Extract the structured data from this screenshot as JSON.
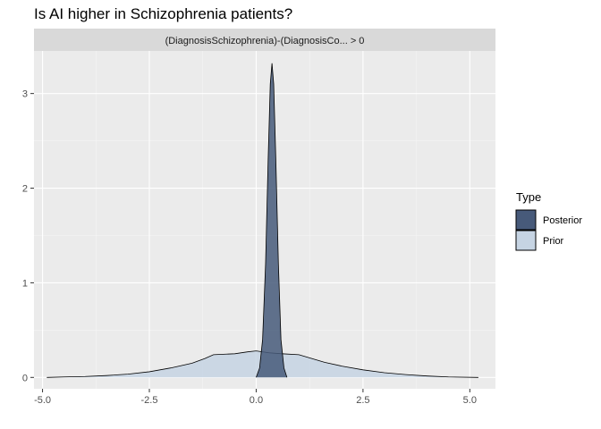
{
  "chart_data": {
    "type": "area",
    "title": "Is AI higher in Schizophrenia patients?",
    "facet_label": "(DiagnosisSchizophrenia)-(DiagnosisCo... > 0",
    "xlabel": "",
    "ylabel": "",
    "xlim": [
      -5.2,
      5.6
    ],
    "ylim": [
      -0.12,
      3.45
    ],
    "x_ticks": [
      -5.0,
      -2.5,
      0.0,
      2.5,
      5.0
    ],
    "x_tick_labels": [
      "-5.0",
      "-2.5",
      "0.0",
      "2.5",
      "5.0"
    ],
    "y_ticks": [
      0,
      1,
      2,
      3
    ],
    "y_tick_labels": [
      "0",
      "1",
      "2",
      "3"
    ],
    "grid": true,
    "legend": {
      "title": "Type",
      "position": "right",
      "entries": [
        "Posterior",
        "Prior"
      ]
    },
    "series": [
      {
        "name": "Prior",
        "color": "#c6d4e3",
        "points": [
          [
            -4.9,
            0.0
          ],
          [
            -4.5,
            0.005
          ],
          [
            -4.0,
            0.01
          ],
          [
            -3.5,
            0.02
          ],
          [
            -3.0,
            0.035
          ],
          [
            -2.5,
            0.06
          ],
          [
            -2.0,
            0.1
          ],
          [
            -1.5,
            0.15
          ],
          [
            -1.2,
            0.2
          ],
          [
            -1.0,
            0.24
          ],
          [
            -0.5,
            0.25
          ],
          [
            -0.2,
            0.27
          ],
          [
            0.0,
            0.28
          ],
          [
            0.3,
            0.26
          ],
          [
            0.6,
            0.25
          ],
          [
            1.0,
            0.24
          ],
          [
            1.3,
            0.2
          ],
          [
            1.6,
            0.16
          ],
          [
            2.0,
            0.12
          ],
          [
            2.5,
            0.08
          ],
          [
            3.0,
            0.05
          ],
          [
            3.5,
            0.03
          ],
          [
            4.0,
            0.015
          ],
          [
            4.5,
            0.005
          ],
          [
            5.2,
            0.0
          ]
        ]
      },
      {
        "name": "Posterior",
        "color": "#475a7a",
        "points": [
          [
            0.0,
            0.0
          ],
          [
            0.08,
            0.1
          ],
          [
            0.15,
            0.4
          ],
          [
            0.22,
            1.2
          ],
          [
            0.28,
            2.3
          ],
          [
            0.33,
            3.1
          ],
          [
            0.37,
            3.32
          ],
          [
            0.41,
            3.1
          ],
          [
            0.46,
            2.3
          ],
          [
            0.52,
            1.2
          ],
          [
            0.58,
            0.4
          ],
          [
            0.65,
            0.1
          ],
          [
            0.72,
            0.0
          ]
        ]
      }
    ]
  }
}
